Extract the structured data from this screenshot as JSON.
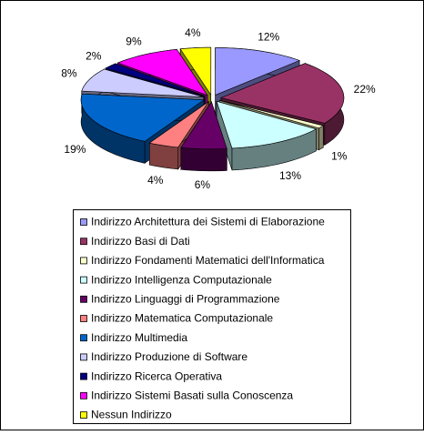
{
  "chart_data": {
    "type": "pie",
    "categories": [
      "Indirizzo Architettura dei Sistemi di Elaborazione",
      "Indirizzo Basi di Dati",
      "Indirizzo Fondamenti Matematici dell'Informatica",
      "Indirizzo Intelligenza Computazionale",
      "Indirizzo Linguaggi di Programmazione",
      "Indirizzo Matematica Computazionale",
      "Indirizzo Multimedia",
      "Indirizzo Produzione di Software",
      "Indirizzo Ricerca Operativa",
      "Indirizzo Sistemi Basati sulla Conoscenza",
      "Nessun Indirizzo"
    ],
    "values": [
      12,
      22,
      1,
      13,
      6,
      4,
      19,
      8,
      2,
      9,
      4
    ],
    "value_labels": [
      "12%",
      "22%",
      "1%",
      "13%",
      "6%",
      "4%",
      "19%",
      "8%",
      "2%",
      "9%",
      "4%"
    ],
    "colors": [
      "#9999ff",
      "#993366",
      "#ffffcc",
      "#ccffff",
      "#660066",
      "#ff8080",
      "#0066cc",
      "#ccccff",
      "#000080",
      "#ff00ff",
      "#ffff00"
    ]
  }
}
